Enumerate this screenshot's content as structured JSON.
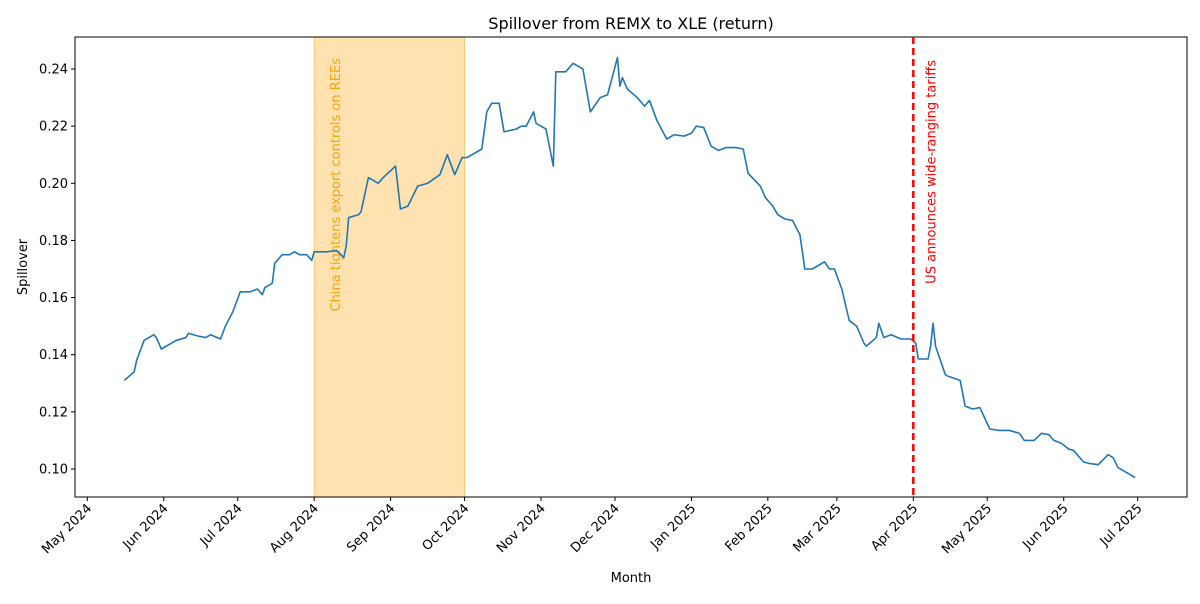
{
  "chart_data": {
    "type": "line",
    "title": "Spillover from REMX to XLE (return)",
    "x_label": "Month",
    "y_label": "Spillover",
    "color": "#1f77b4",
    "x": [
      "2024-05-16",
      "2024-05-20",
      "2024-05-21",
      "2024-05-24",
      "2024-05-28",
      "2024-05-29",
      "2024-05-31",
      "2024-06-04",
      "2024-06-06",
      "2024-06-10",
      "2024-06-11",
      "2024-06-15",
      "2024-06-18",
      "2024-06-20",
      "2024-06-24",
      "2024-06-26",
      "2024-06-29",
      "2024-07-02",
      "2024-07-06",
      "2024-07-09",
      "2024-07-11",
      "2024-07-12",
      "2024-07-15",
      "2024-07-16",
      "2024-07-19",
      "2024-07-22",
      "2024-07-24",
      "2024-07-26",
      "2024-07-29",
      "2024-07-31",
      "2024-08-01",
      "2024-08-06",
      "2024-08-10",
      "2024-08-13",
      "2024-08-14",
      "2024-08-15",
      "2024-08-19",
      "2024-08-20",
      "2024-08-23",
      "2024-08-27",
      "2024-08-29",
      "2024-09-03",
      "2024-09-05",
      "2024-09-08",
      "2024-09-12",
      "2024-09-16",
      "2024-09-21",
      "2024-09-24",
      "2024-09-27",
      "2024-09-30",
      "2024-10-02",
      "2024-10-08",
      "2024-10-10",
      "2024-10-12",
      "2024-10-15",
      "2024-10-17",
      "2024-10-22",
      "2024-10-24",
      "2024-10-26",
      "2024-10-29",
      "2024-10-30",
      "2024-11-03",
      "2024-11-06",
      "2024-11-07",
      "2024-11-11",
      "2024-11-14",
      "2024-11-18",
      "2024-11-21",
      "2024-11-25",
      "2024-11-28",
      "2024-12-02",
      "2024-12-03",
      "2024-12-04",
      "2024-12-06",
      "2024-12-10",
      "2024-12-13",
      "2024-12-15",
      "2024-12-18",
      "2024-12-22",
      "2024-12-25",
      "2024-12-29",
      "2025-01-01",
      "2025-01-03",
      "2025-01-06",
      "2025-01-09",
      "2025-01-12",
      "2025-01-15",
      "2025-01-19",
      "2025-01-22",
      "2025-01-24",
      "2025-01-29",
      "2025-01-31",
      "2025-02-03",
      "2025-02-05",
      "2025-02-08",
      "2025-02-11",
      "2025-02-14",
      "2025-02-16",
      "2025-02-19",
      "2025-02-21",
      "2025-02-24",
      "2025-02-26",
      "2025-02-28",
      "2025-03-03",
      "2025-03-06",
      "2025-03-09",
      "2025-03-12",
      "2025-03-13",
      "2025-03-17",
      "2025-03-18",
      "2025-03-20",
      "2025-03-23",
      "2025-03-27",
      "2025-03-31",
      "2025-04-02",
      "2025-04-03",
      "2025-04-07",
      "2025-04-08",
      "2025-04-09",
      "2025-04-10",
      "2025-04-14",
      "2025-04-15",
      "2025-04-20",
      "2025-04-22",
      "2025-04-25",
      "2025-04-28",
      "2025-05-02",
      "2025-05-06",
      "2025-05-10",
      "2025-05-14",
      "2025-05-16",
      "2025-05-20",
      "2025-05-23",
      "2025-05-26",
      "2025-05-28",
      "2025-05-31",
      "2025-06-03",
      "2025-06-05",
      "2025-06-09",
      "2025-06-11",
      "2025-06-15",
      "2025-06-19",
      "2025-06-21",
      "2025-06-23",
      "2025-06-26",
      "2025-06-30"
    ],
    "values": [
      0.131,
      0.134,
      0.138,
      0.145,
      0.147,
      0.146,
      0.142,
      0.144,
      0.145,
      0.146,
      0.1475,
      0.1465,
      0.146,
      0.147,
      0.1455,
      0.15,
      0.155,
      0.162,
      0.162,
      0.163,
      0.161,
      0.1635,
      0.165,
      0.172,
      0.175,
      0.175,
      0.176,
      0.175,
      0.175,
      0.173,
      0.176,
      0.176,
      0.1765,
      0.174,
      0.178,
      0.188,
      0.189,
      0.19,
      0.202,
      0.2,
      0.202,
      0.206,
      0.191,
      0.192,
      0.199,
      0.2,
      0.203,
      0.21,
      0.203,
      0.209,
      0.209,
      0.212,
      0.225,
      0.228,
      0.228,
      0.218,
      0.219,
      0.22,
      0.22,
      0.225,
      0.221,
      0.219,
      0.206,
      0.239,
      0.239,
      0.242,
      0.24,
      0.225,
      0.23,
      0.231,
      0.244,
      0.234,
      0.237,
      0.233,
      0.23,
      0.227,
      0.229,
      0.222,
      0.2155,
      0.217,
      0.2165,
      0.2175,
      0.22,
      0.2195,
      0.213,
      0.2115,
      0.2125,
      0.2125,
      0.212,
      0.2035,
      0.199,
      0.195,
      0.192,
      0.189,
      0.1875,
      0.187,
      0.182,
      0.17,
      0.17,
      0.171,
      0.1725,
      0.17,
      0.17,
      0.163,
      0.152,
      0.15,
      0.144,
      0.143,
      0.146,
      0.151,
      0.146,
      0.147,
      0.1455,
      0.1455,
      0.144,
      0.1385,
      0.1385,
      0.143,
      0.151,
      0.143,
      0.133,
      0.1325,
      0.131,
      0.122,
      0.121,
      0.1215,
      0.114,
      0.1135,
      0.1135,
      0.1125,
      0.11,
      0.11,
      0.1125,
      0.112,
      0.11,
      0.109,
      0.107,
      0.1065,
      0.1025,
      0.102,
      0.1015,
      0.105,
      0.104,
      0.1005,
      0.099,
      0.097
    ],
    "xlim": [
      "2024-04-26",
      "2025-07-21"
    ],
    "xticks": [
      {
        "value": "2024-05-01",
        "label": "May 2024"
      },
      {
        "value": "2024-06-01",
        "label": "Jun 2024"
      },
      {
        "value": "2024-07-01",
        "label": "Jul 2024"
      },
      {
        "value": "2024-08-01",
        "label": "Aug 2024"
      },
      {
        "value": "2024-09-01",
        "label": "Sep 2024"
      },
      {
        "value": "2024-10-01",
        "label": "Oct 2024"
      },
      {
        "value": "2024-11-01",
        "label": "Nov 2024"
      },
      {
        "value": "2024-12-01",
        "label": "Dec 2024"
      },
      {
        "value": "2025-01-01",
        "label": "Jan 2025"
      },
      {
        "value": "2025-02-01",
        "label": "Feb 2025"
      },
      {
        "value": "2025-03-01",
        "label": "Mar 2025"
      },
      {
        "value": "2025-04-01",
        "label": "Apr 2025"
      },
      {
        "value": "2025-05-01",
        "label": "May 2025"
      },
      {
        "value": "2025-06-01",
        "label": "Jun 2025"
      },
      {
        "value": "2025-07-01",
        "label": "Jul 2025"
      }
    ],
    "ylim": [
      0.0902,
      0.2512
    ],
    "yticks": [
      {
        "value": 0.1,
        "label": "0.10"
      },
      0.12,
      0.14,
      0.16,
      0.18,
      {
        "value": 0.2,
        "label": "0.20"
      },
      0.22,
      0.24
    ],
    "shaded_spans": [
      {
        "start": "2024-08-01",
        "end": "2024-10-01",
        "color": "#ffe2b0",
        "label": "China tightens export controls on REEs",
        "label_color": "#ffa500"
      }
    ],
    "vlines": [
      {
        "x": "2025-04-01",
        "color": "#ff0000",
        "label": "US announces wide-ranging tariffs"
      }
    ]
  }
}
